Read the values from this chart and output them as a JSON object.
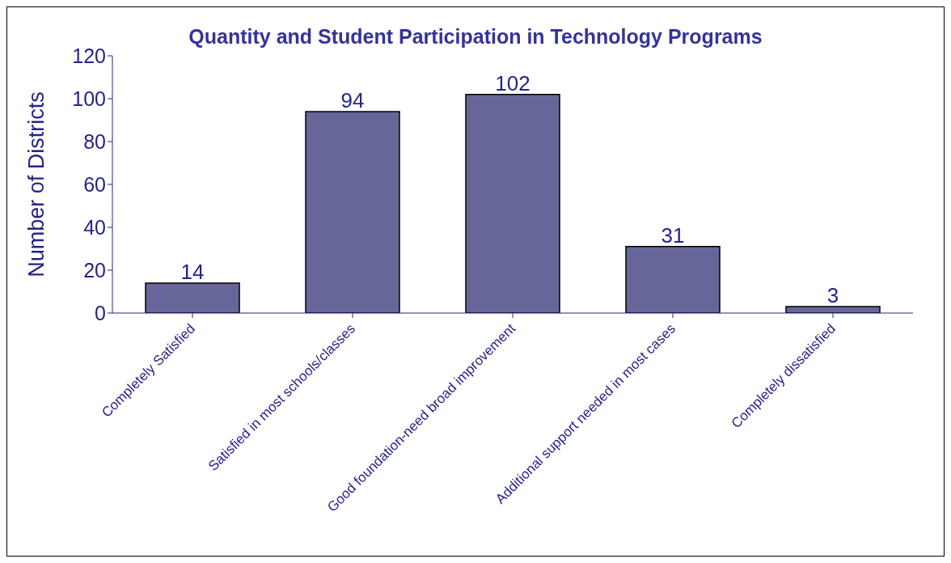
{
  "chart_data": {
    "type": "bar",
    "title": "Quantity and Student Participation in Technology Programs",
    "ylabel": "Number of Districts",
    "categories": [
      "Completely Satisfied",
      "Satisfied in most schools/classes",
      "Good foundation-need broad improvement",
      "Additional support needed in most cases",
      "Completely dissatisfied"
    ],
    "values": [
      14,
      94,
      102,
      31,
      3
    ],
    "color": "#666699",
    "ylim": [
      0,
      120
    ],
    "yticks": [
      0,
      20,
      40,
      60,
      80,
      100,
      120
    ],
    "grid": false,
    "data_labels": true
  }
}
